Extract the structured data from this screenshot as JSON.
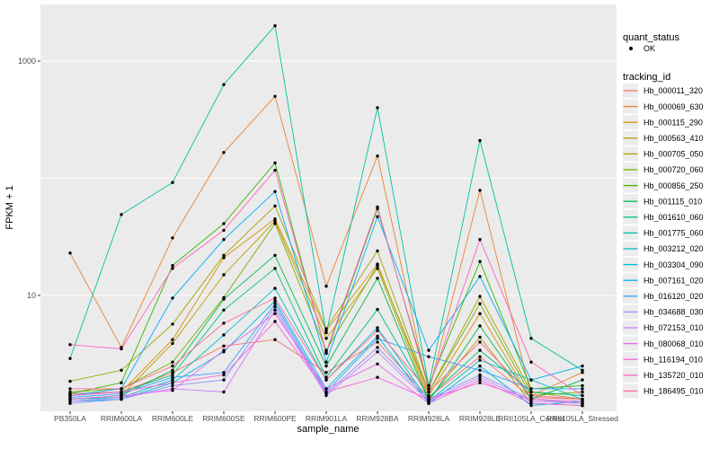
{
  "chart_data": {
    "type": "line",
    "title": "",
    "xlabel": "sample_name",
    "ylabel": "FPKM + 1",
    "y_scale": "log10",
    "ylim": [
      1,
      2300
    ],
    "yticks": [
      {
        "value": 10,
        "label": "10"
      },
      {
        "value": 1000,
        "label": "1000"
      }
    ],
    "gridlines": [
      10,
      100,
      1000
    ],
    "grid_on": true,
    "panel_bg": "#EBEBEB",
    "grid_color": "#FFFFFF",
    "point_color": "#000000",
    "legend_position": "right",
    "categories": [
      "PB350LA",
      "RRIM600LA",
      "RRIM600LE",
      "RRIM600SE",
      "RRIM600PE",
      "RRIM901LA",
      "RRIM928BA",
      "RRIM928LA",
      "RRIM928LE",
      "RRII105LA_Control",
      "RRII105LA_Stressed"
    ],
    "series": [
      {
        "name": "Hb_000011_320",
        "color": "#F8766D",
        "values": [
          1.45,
          1.5,
          2.2,
          3.7,
          4.2,
          2.2,
          4.0,
          1.35,
          3.0,
          1.35,
          1.3
        ]
      },
      {
        "name": "Hb_000069_630",
        "color": "#EA8331",
        "values": [
          23,
          3.6,
          31,
          166,
          500,
          12,
          155,
          1.5,
          79,
          1.4,
          2.2
        ]
      },
      {
        "name": "Hb_000115_290",
        "color": "#D89000",
        "values": [
          1.4,
          1.5,
          4.2,
          21,
          45,
          5.0,
          18.5,
          1.4,
          7.0,
          1.3,
          1.2
        ]
      },
      {
        "name": "Hb_000563_410",
        "color": "#C09B00",
        "values": [
          1.3,
          1.4,
          3.9,
          15,
          43,
          4.3,
          17,
          1.3,
          4.4,
          1.2,
          1.15
        ]
      },
      {
        "name": "Hb_000705_050",
        "color": "#A3A500",
        "values": [
          1.85,
          2.3,
          5.7,
          22,
          58,
          5.2,
          24,
          1.5,
          9.8,
          1.5,
          1.3
        ]
      },
      {
        "name": "Hb_000720_060",
        "color": "#7CAE00",
        "values": [
          1.5,
          1.6,
          2.7,
          9.6,
          41,
          3.4,
          18,
          1.5,
          8.5,
          1.4,
          1.5
        ]
      },
      {
        "name": "Hb_000856_250",
        "color": "#39B600",
        "values": [
          1.45,
          1.8,
          18,
          41,
          135,
          3.2,
          55,
          1.7,
          19.5,
          1.6,
          1.7
        ]
      },
      {
        "name": "Hb_001115_010",
        "color": "#00BB4E",
        "values": [
          1.3,
          1.4,
          2.3,
          9.3,
          22,
          2.5,
          14,
          1.25,
          5.5,
          1.3,
          1.9
        ]
      },
      {
        "name": "Hb_001610_060",
        "color": "#00BF7D",
        "values": [
          1.4,
          1.5,
          2.1,
          7.5,
          17,
          2.0,
          7.6,
          1.35,
          3.4,
          1.5,
          1.4
        ]
      },
      {
        "name": "Hb_001775_060",
        "color": "#00C1A3",
        "values": [
          2.9,
          49,
          92,
          630,
          2000,
          4.8,
          400,
          1.7,
          210,
          4.3,
          2.3
        ]
      },
      {
        "name": "Hb_003212_020",
        "color": "#00BFC4",
        "values": [
          1.3,
          1.35,
          1.9,
          4.6,
          11.5,
          1.9,
          5.3,
          1.25,
          2.8,
          1.9,
          1.3
        ]
      },
      {
        "name": "Hb_003304_090",
        "color": "#00BAE0",
        "values": [
          1.25,
          1.3,
          1.8,
          3.3,
          9.0,
          1.6,
          4.5,
          1.2,
          2.5,
          1.15,
          1.25
        ]
      },
      {
        "name": "Hb_007161_020",
        "color": "#00B0F6",
        "values": [
          1.4,
          1.6,
          9.5,
          30,
          77,
          2.7,
          47,
          3.4,
          14.5,
          1.9,
          2.5
        ]
      },
      {
        "name": "Hb_016120_020",
        "color": "#35A2FF",
        "values": [
          1.35,
          1.45,
          2.0,
          2.2,
          8.5,
          1.5,
          4.3,
          3.0,
          2.3,
          1.6,
          1.6
        ]
      },
      {
        "name": "Hb_034688_030",
        "color": "#9590FF",
        "values": [
          1.2,
          1.3,
          1.7,
          1.9,
          8.0,
          1.45,
          3.6,
          1.3,
          2.1,
          1.3,
          1.2
        ]
      },
      {
        "name": "Hb_072153_010",
        "color": "#C77CFF",
        "values": [
          1.25,
          1.35,
          1.6,
          1.5,
          7.5,
          1.4,
          3.3,
          1.25,
          2.0,
          1.25,
          1.2
        ]
      },
      {
        "name": "Hb_080068_010",
        "color": "#E76BF3",
        "values": [
          1.3,
          1.4,
          1.55,
          3.4,
          7.0,
          1.6,
          2.6,
          1.2,
          1.9,
          1.2,
          1.15
        ]
      },
      {
        "name": "Hb_116194_010",
        "color": "#FA62DB",
        "values": [
          1.4,
          1.5,
          1.8,
          2.1,
          6.0,
          1.5,
          2.0,
          1.3,
          1.8,
          1.3,
          1.25
        ]
      },
      {
        "name": "Hb_135720_010",
        "color": "#FF62BC",
        "values": [
          3.8,
          3.5,
          17,
          36,
          117,
          3.3,
          57,
          1.6,
          30,
          2.7,
          1.4
        ]
      },
      {
        "name": "Hb_186495_010",
        "color": "#FF6A98",
        "values": [
          1.6,
          1.6,
          2.5,
          5.8,
          9.5,
          1.9,
          5.0,
          1.5,
          4.0,
          1.4,
          1.3
        ]
      }
    ]
  },
  "legend": {
    "quant_status_title": "quant_status",
    "quant_status_items": [
      {
        "label": "OK",
        "glyph": "point"
      }
    ],
    "tracking_title": "tracking_id"
  }
}
